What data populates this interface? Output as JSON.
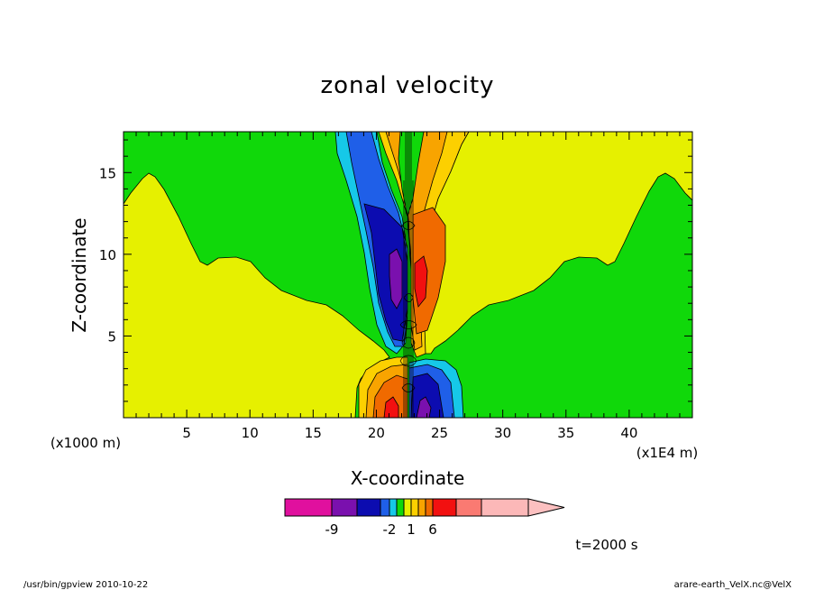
{
  "chart_data": {
    "type": "contour",
    "title": "zonal velocity",
    "xlabel": "X-coordinate",
    "ylabel": "Z-coordinate",
    "x_unit_note": "(x1E4 m)",
    "y_unit_note": "(x1000 m)",
    "xlim": [
      0,
      45
    ],
    "ylim": [
      0,
      17.5
    ],
    "x_ticks": [
      5,
      10,
      15,
      20,
      25,
      30,
      35,
      40
    ],
    "y_ticks": [
      5,
      10,
      15
    ],
    "colorbar": {
      "levels": [
        -12,
        -9,
        -6,
        -3,
        -2,
        -1,
        0,
        1,
        2,
        3,
        6,
        9,
        12
      ],
      "labels": [
        {
          "value": -9,
          "text": "-9"
        },
        {
          "value": -2,
          "text": "-2"
        },
        {
          "value": 1,
          "text": "1"
        },
        {
          "value": 6,
          "text": "6"
        }
      ],
      "colors": [
        "#e0109e",
        "#7a10ae",
        "#0c0cb0",
        "#1f5fe8",
        "#16c8e8",
        "#10d80a",
        "#e6f000",
        "#fcd000",
        "#f8a400",
        "#f06a00",
        "#f21010",
        "#fa7a72",
        "#fcb8b8"
      ],
      "extend": "max"
    },
    "annotations": {
      "time": "t=2000 s",
      "footer_left": "/usr/bin/gpview   2010-10-22",
      "footer_right": "arare-earth_VelX.nc@VelX"
    }
  }
}
